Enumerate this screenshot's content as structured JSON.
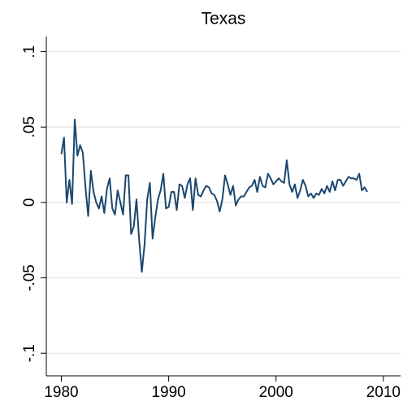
{
  "chart_data": {
    "type": "line",
    "title": "Texas",
    "x": [
      1980,
      1980.25,
      1980.5,
      1980.75,
      1981,
      1981.25,
      1981.5,
      1981.75,
      1982,
      1982.25,
      1982.5,
      1982.75,
      1983,
      1983.25,
      1983.5,
      1983.75,
      1984,
      1984.25,
      1984.5,
      1984.75,
      1985,
      1985.25,
      1985.5,
      1985.75,
      1986,
      1986.25,
      1986.5,
      1986.75,
      1987,
      1987.25,
      1987.5,
      1987.75,
      1988,
      1988.25,
      1988.5,
      1988.75,
      1989,
      1989.25,
      1989.5,
      1989.75,
      1990,
      1990.25,
      1990.5,
      1990.75,
      1991,
      1991.25,
      1991.5,
      1991.75,
      1992,
      1992.25,
      1992.5,
      1992.75,
      1993,
      1993.25,
      1993.5,
      1993.75,
      1994,
      1994.25,
      1994.5,
      1994.75,
      1995,
      1995.25,
      1995.5,
      1995.75,
      1996,
      1996.25,
      1996.5,
      1996.75,
      1997,
      1997.25,
      1997.5,
      1997.75,
      1998,
      1998.25,
      1998.5,
      1998.75,
      1999,
      1999.25,
      1999.5,
      1999.75,
      2000,
      2000.25,
      2000.5,
      2000.75,
      2001,
      2001.25,
      2001.5,
      2001.75,
      2002,
      2002.25,
      2002.5,
      2002.75,
      2003,
      2003.25,
      2003.5,
      2003.75,
      2004,
      2004.25,
      2004.5,
      2004.75,
      2005,
      2005.25,
      2005.5,
      2005.75,
      2006,
      2006.25,
      2006.5,
      2006.75,
      2007,
      2007.25,
      2007.5,
      2007.75,
      2008,
      2008.25,
      2008.5
    ],
    "series": [
      {
        "color": "#1a476f",
        "values": [
          0.032,
          0.043,
          0.0,
          0.015,
          -0.001,
          0.055,
          0.031,
          0.038,
          0.033,
          0.01,
          -0.009,
          0.021,
          0.007,
          0.0,
          -0.004,
          0.004,
          -0.007,
          0.009,
          0.016,
          -0.004,
          -0.008,
          0.008,
          0.0,
          -0.008,
          0.018,
          0.018,
          -0.021,
          -0.016,
          0.002,
          -0.025,
          -0.046,
          -0.028,
          0.002,
          0.013,
          -0.024,
          -0.01,
          0.002,
          0.008,
          0.019,
          -0.004,
          -0.003,
          0.007,
          0.007,
          -0.005,
          0.012,
          0.011,
          0.003,
          0.012,
          0.016,
          -0.005,
          0.016,
          0.005,
          0.004,
          0.008,
          0.011,
          0.01,
          0.006,
          0.005,
          0.001,
          -0.006,
          0.002,
          0.018,
          0.012,
          0.005,
          0.011,
          -0.002,
          0.002,
          0.004,
          0.004,
          0.007,
          0.01,
          0.011,
          0.015,
          0.007,
          0.017,
          0.011,
          0.01,
          0.019,
          0.016,
          0.012,
          0.014,
          0.016,
          0.014,
          0.013,
          0.028,
          0.012,
          0.007,
          0.012,
          0.003,
          0.008,
          0.015,
          0.011,
          0.004,
          0.006,
          0.003,
          0.006,
          0.005,
          0.009,
          0.006,
          0.011,
          0.007,
          0.014,
          0.008,
          0.015,
          0.015,
          0.011,
          0.014,
          0.017,
          0.016,
          0.016,
          0.015,
          0.019,
          0.008,
          0.01,
          0.007
        ]
      }
    ],
    "xlim": [
      1978.6,
      2011.6
    ],
    "xticks": [
      1980,
      1990,
      2000,
      2010
    ],
    "ylim": [
      -0.115,
      0.11
    ],
    "yticks": [
      {
        "value": -0.1,
        "label": "-.1"
      },
      {
        "value": -0.05,
        "label": "-.05"
      },
      0,
      {
        "value": 0.05,
        "label": ".05"
      },
      {
        "value": 0.1,
        "label": ".1"
      }
    ],
    "grid": true
  }
}
